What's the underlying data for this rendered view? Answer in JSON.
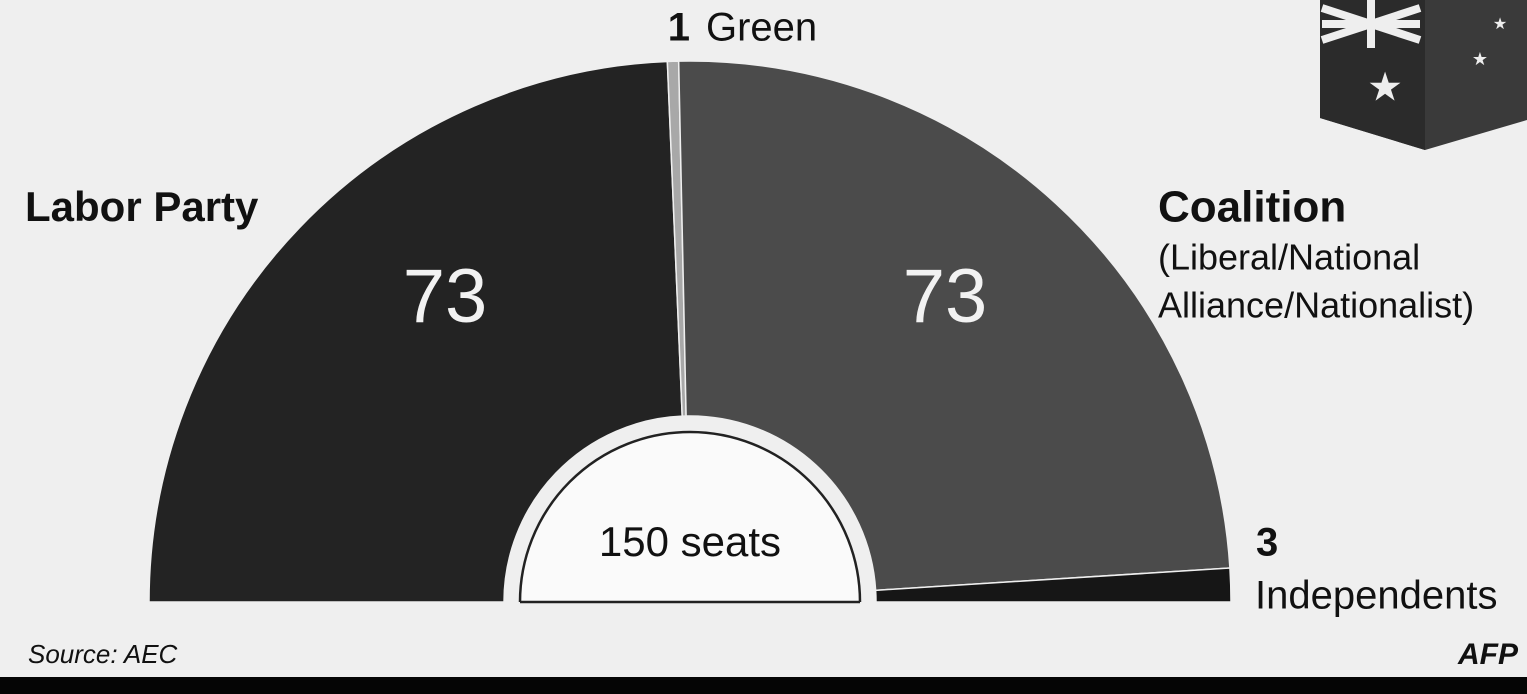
{
  "chart_data": {
    "type": "semidonut",
    "categories": [
      "Labor Party",
      "Green",
      "Coalition",
      "Independents"
    ],
    "values": [
      73,
      1,
      73,
      3
    ],
    "colors": [
      "#232323",
      "#a8a8a8",
      "#4b4b4b",
      "#161616"
    ],
    "annotations": [
      "(Liberal/National",
      "Alliance/Nationalist)"
    ],
    "center_label": "150 seats",
    "source": "Source: AEC",
    "credit": "AFP"
  }
}
